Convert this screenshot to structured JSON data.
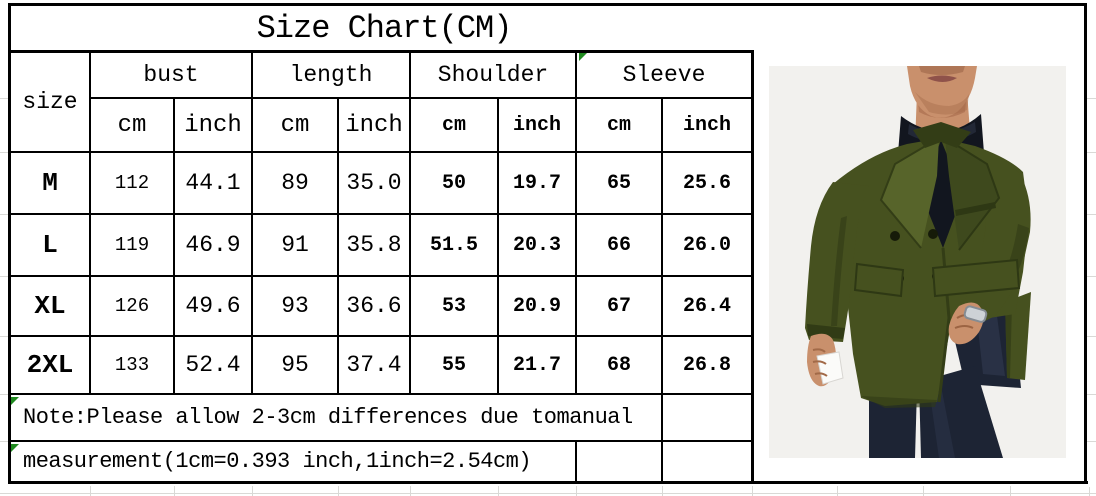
{
  "title": "Size Chart(CM)",
  "table": {
    "size_header": "size",
    "groups": [
      "bust",
      "length",
      "Shoulder",
      "Sleeve"
    ],
    "units": [
      "cm",
      "inch",
      "cm",
      "inch",
      "cm",
      "inch",
      "cm",
      "inch"
    ],
    "rows": [
      {
        "size": "M",
        "values": [
          "112",
          "44.1",
          "89",
          "35.0",
          "50",
          "19.7",
          "65",
          "25.6"
        ]
      },
      {
        "size": "L",
        "values": [
          "119",
          "46.9",
          "91",
          "35.8",
          "51.5",
          "20.3",
          "66",
          "26.0"
        ]
      },
      {
        "size": "XL",
        "values": [
          "126",
          "49.6",
          "93",
          "36.6",
          "53",
          "20.9",
          "67",
          "26.4"
        ]
      },
      {
        "size": "2XL",
        "values": [
          "133",
          "52.4",
          "95",
          "37.4",
          "55",
          "21.7",
          "68",
          "26.8"
        ]
      }
    ],
    "notes": [
      "Note:Please allow 2-3cm differences due tomanual",
      "measurement(1cm=0.393 inch,1inch=2.54cm)"
    ]
  },
  "chart_data": {
    "type": "table",
    "title": "Size Chart(CM)",
    "columns": [
      "size",
      "bust cm",
      "bust inch",
      "length cm",
      "length inch",
      "Shoulder cm",
      "Shoulder inch",
      "Sleeve cm",
      "Sleeve inch"
    ],
    "rows": [
      [
        "M",
        112,
        44.1,
        89,
        35.0,
        50,
        19.7,
        65,
        25.6
      ],
      [
        "L",
        119,
        46.9,
        91,
        35.8,
        51.5,
        20.3,
        66,
        26.0
      ],
      [
        "XL",
        126,
        49.6,
        93,
        36.6,
        53,
        20.9,
        67,
        26.4
      ],
      [
        "2XL",
        133,
        52.4,
        95,
        37.4,
        55,
        21.7,
        68,
        26.8
      ]
    ],
    "notes": [
      "Note:Please allow 2-3cm differences due tomanual",
      "measurement(1cm=0.393 inch,1inch=2.54cm)"
    ]
  },
  "photo": {
    "alt": "Man wearing an olive green double-breasted wool coat over a black turtleneck with dark navy trousers, one hand in pocket",
    "colors": {
      "background": "#f2f1ee",
      "coat": "#46511f",
      "coat_shadow": "#313b15",
      "coat_highlight": "#57642a",
      "turtleneck": "#12161f",
      "trousers": "#1d2434",
      "skin": "#c9906c"
    }
  },
  "markers": {
    "color": "#1f8a1f",
    "label": "excel-error-indicator"
  }
}
